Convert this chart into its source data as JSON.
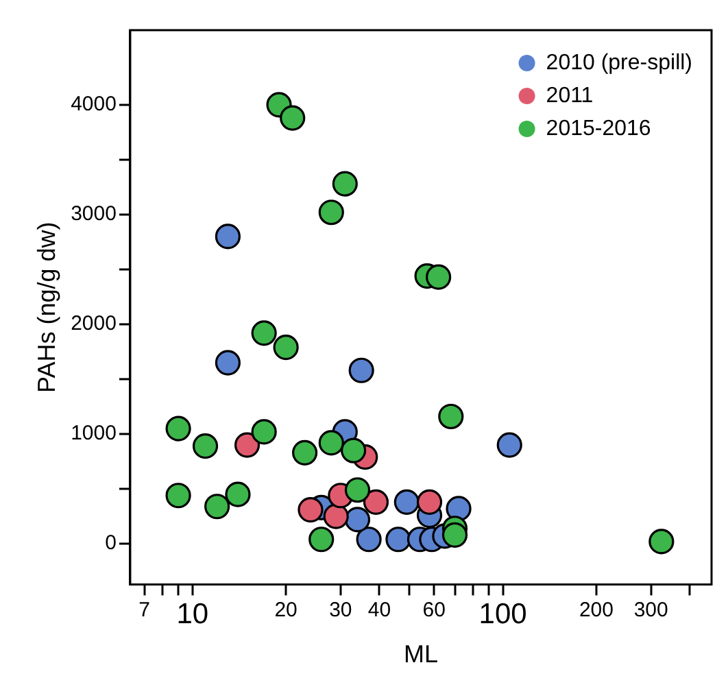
{
  "chart_data": {
    "type": "scatter",
    "xlabel": "ML",
    "ylabel": "PAHs (ng/g dw)",
    "log": "x",
    "marker": "circle",
    "grid": false,
    "legend": "top right",
    "xlim": [
      6.3,
      470
    ],
    "ylim": [
      -370,
      4680
    ],
    "xticks": [
      7,
      {
        "value": 8,
        "label": null
      },
      {
        "value": 9,
        "label": null
      },
      10,
      20,
      30,
      40,
      {
        "value": 50,
        "label": null
      },
      60,
      {
        "value": 70,
        "label": null
      },
      {
        "value": 80,
        "label": null
      },
      {
        "value": 90,
        "label": null
      },
      100,
      200,
      300,
      {
        "value": 400,
        "label": null
      }
    ],
    "yticks": [
      0,
      {
        "value": 500,
        "label": null
      },
      1000,
      {
        "value": 1500,
        "label": null
      },
      2000,
      {
        "value": 2500,
        "label": null
      },
      3000,
      {
        "value": 3500,
        "label": null
      },
      4000
    ],
    "series": [
      {
        "name": "2010 (pre-spill)",
        "color": "#5b82cf",
        "x": [
          13,
          13,
          35,
          31,
          105,
          49,
          72,
          37,
          46,
          54,
          59,
          58,
          34,
          26,
          65
        ],
        "values": [
          2800,
          1650,
          1580,
          1020,
          900,
          380,
          320,
          40,
          40,
          40,
          40,
          260,
          220,
          330,
          70
        ]
      },
      {
        "name": "2011",
        "color": "#e05a6e",
        "x": [
          15,
          36,
          24,
          29,
          30,
          39,
          58
        ],
        "values": [
          900,
          790,
          310,
          250,
          440,
          380,
          380
        ]
      },
      {
        "name": "2015-2016",
        "color": "#3cb54a",
        "x": [
          19,
          21,
          31,
          28,
          57,
          62,
          17,
          20,
          68,
          9,
          11,
          17,
          23,
          28,
          33,
          9,
          12,
          14,
          26,
          34,
          70,
          70,
          324
        ],
        "values": [
          4000,
          3880,
          3280,
          3020,
          2440,
          2430,
          1920,
          1790,
          1160,
          1050,
          890,
          1020,
          830,
          920,
          850,
          440,
          340,
          450,
          40,
          490,
          140,
          80,
          20
        ]
      }
    ]
  }
}
